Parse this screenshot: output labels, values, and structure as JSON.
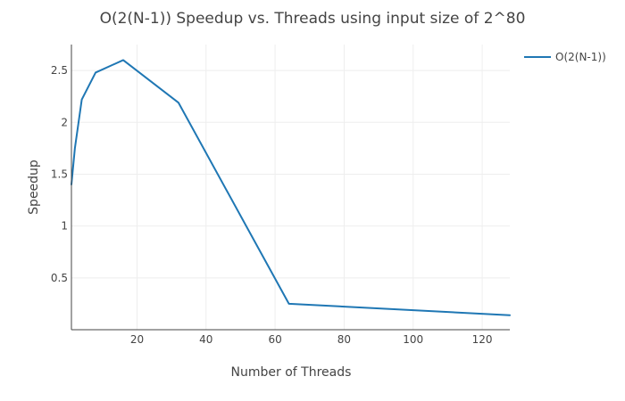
{
  "chart_data": {
    "type": "line",
    "title": "O(2(N-1)) Speedup vs. Threads using input size of 2^80",
    "xlabel": "Number of Threads",
    "ylabel": "Speedup",
    "xlim": [
      1,
      128
    ],
    "ylim": [
      0,
      2.75
    ],
    "xticks": [
      20,
      40,
      60,
      80,
      100,
      120
    ],
    "yticks": [
      0.5,
      1,
      1.5,
      2,
      2.5
    ],
    "ytick_labels": [
      "0.5",
      "1",
      "1.5",
      "2",
      "2.5"
    ],
    "grid": true,
    "legend_position": "top-right",
    "series": [
      {
        "name": "O(2(N-1))",
        "color": "#1f77b4",
        "x": [
          1,
          2,
          4,
          8,
          16,
          32,
          64,
          128
        ],
        "y": [
          1.4,
          1.75,
          2.22,
          2.48,
          2.6,
          2.19,
          0.25,
          0.14
        ]
      }
    ]
  }
}
